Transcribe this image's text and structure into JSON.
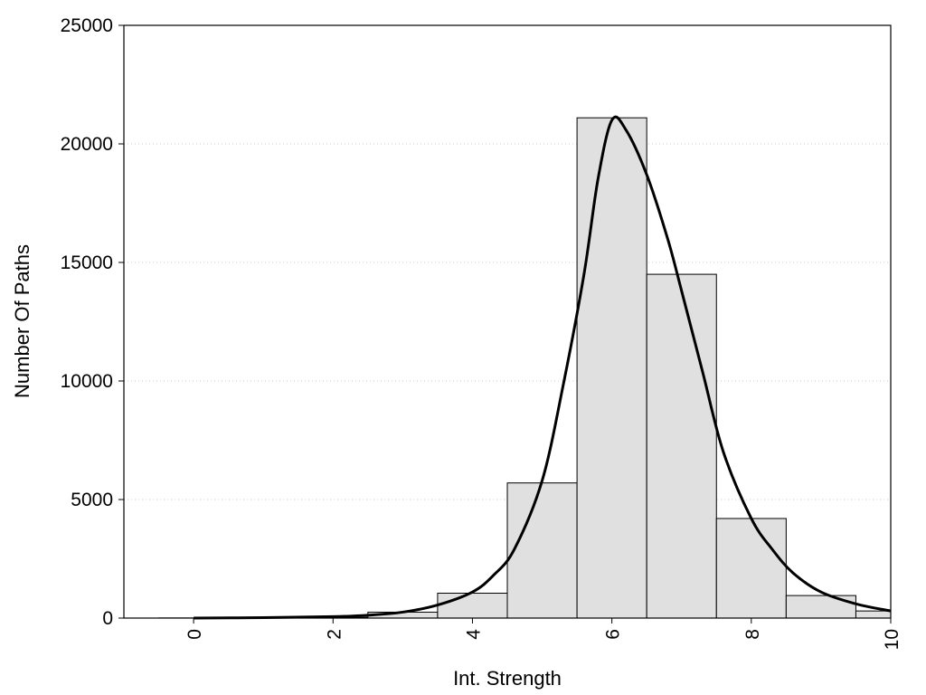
{
  "chart_data": {
    "type": "bar",
    "title": "",
    "xlabel": "Int. Strength",
    "ylabel": "Number Of Paths",
    "xlim": [
      -1,
      10
    ],
    "ylim": [
      0,
      25000
    ],
    "x_ticks": [
      0,
      2,
      4,
      6,
      8,
      10
    ],
    "y_ticks": [
      0,
      5000,
      10000,
      15000,
      20000,
      25000
    ],
    "grid": "horizontal dotted",
    "legend": "none",
    "bins": [
      {
        "x": 0,
        "value": 5
      },
      {
        "x": 1,
        "value": 10
      },
      {
        "x": 2,
        "value": 30
      },
      {
        "x": 3,
        "value": 250
      },
      {
        "x": 4,
        "value": 1050
      },
      {
        "x": 5,
        "value": 5700
      },
      {
        "x": 6,
        "value": 21100
      },
      {
        "x": 7,
        "value": 14500
      },
      {
        "x": 8,
        "value": 4200
      },
      {
        "x": 9,
        "value": 950
      },
      {
        "x": 10,
        "value": 300
      }
    ],
    "curve": {
      "x": [
        0,
        1,
        2,
        2.5,
        3,
        3.5,
        4,
        4.3,
        4.6,
        5,
        5.3,
        5.6,
        5.8,
        6,
        6.2,
        6.5,
        6.8,
        7,
        7.3,
        7.6,
        8,
        8.3,
        8.6,
        9,
        9.5,
        10
      ],
      "y": [
        0,
        20,
        60,
        120,
        250,
        550,
        1100,
        1800,
        2900,
        5800,
        9800,
        14500,
        18500,
        21000,
        20600,
        18700,
        16000,
        13800,
        10400,
        7000,
        4200,
        2900,
        1900,
        1100,
        600,
        300
      ]
    },
    "colors": {
      "bar_fill": "#e0e0e0",
      "bar_stroke": "#000000",
      "curve": "#000000",
      "grid": "#cccccc"
    }
  }
}
